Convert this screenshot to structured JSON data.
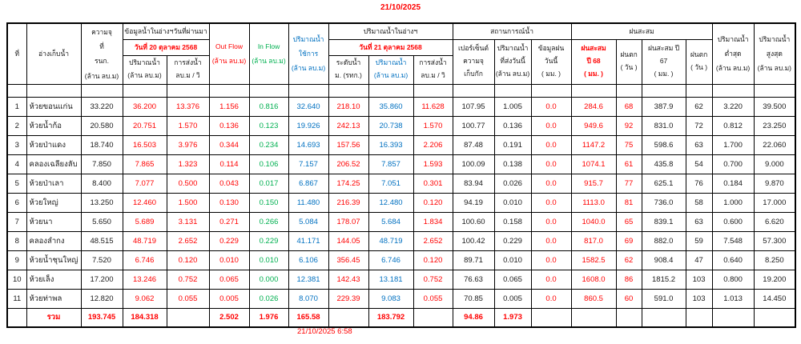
{
  "page": {
    "top_date": "21/10/2025",
    "footer_timestamp": "21/10/2025 6:58"
  },
  "colors": {
    "negative_red": "#ff0000",
    "inflow_green": "#00b050",
    "volume_blue": "#0070c0",
    "text_black": "#1a1a1a"
  },
  "table": {
    "header": {
      "no": "ที่",
      "reservoir": "อ่างเก็บน้ำ",
      "capacity": "ความจุ\nที่\nรนก.\n(ล้าน ลบ.ม)",
      "prev_group": "ข้อมูลน้ำในอ่างฯวันที่ผ่านมา",
      "prev_date": "วันที่ 20 ตุลาคม 2568",
      "prev_volume": "ปริมาณน้ำ\n(ล้าน ลบ.ม)",
      "prev_discharge": "การส่งน้ำ\nลบ.ม / วิ",
      "out_flow": "Out Flow\n(ล้าน ลบ.ม)",
      "in_flow": "In Flow\n(ล้าน ลบ.ม)",
      "usable": "ปริมาณน้ำ\nใช้การ\n(ล้าน ลบ.ม)",
      "today_group": "ปริมาณน้ำในอ่างฯ",
      "today_date": "วันที่ 21 ตุลาคม 2568",
      "level": "ระดับน้ำ\nม. (รทก.)",
      "today_volume": "ปริมาณน้ำ\n(ล้าน ลบ.ม)",
      "today_discharge": "การส่งน้ำ\nลบ.ม / วิ",
      "situation_group": "สถานการณ์น้ำ",
      "percent": "เปอร์เซ็นต์\nความจุ\nเก็บกัก",
      "sent_today": "ปริมาณน้ำ\nที่ส่งวันนี้\n(ล้าน ลบ.ม)",
      "rain_today": "ข้อมูลฝน\nวันนี้\n( มม. )",
      "rain_group": "ฝนสะสม",
      "rain68": "ฝนสะสม\nปี 68\n( มม. )",
      "rain_days68": "ฝนตก\n( วัน )",
      "rain67": "ฝนสะสม ปี\n67\n( มม. )",
      "rain_days67": "ฝนตก\n( วัน )",
      "min": "ปริมาณน้ำ\nต่ำสุด\n(ล้าน ลบ.ม)",
      "max": "ปริมาณน้ำ\nสูงสุด\n(ล้าน ลบ.ม)"
    },
    "column_keys": [
      "no",
      "reservoir",
      "capacity",
      "prev_volume",
      "prev_discharge",
      "out_flow",
      "in_flow",
      "usable",
      "level",
      "today_volume",
      "today_discharge",
      "percent",
      "sent_today",
      "rain_today",
      "rain_acc_68",
      "rain_days_68",
      "rain_acc_67",
      "rain_days_67",
      "min",
      "max"
    ],
    "column_colors": [
      "black",
      "black",
      "black",
      "red",
      "red",
      "red",
      "green",
      "blue",
      "red",
      "blue",
      "red",
      "black",
      "black",
      "red",
      "red",
      "red",
      "black",
      "black",
      "black",
      "black"
    ],
    "rows": [
      [
        "1",
        "ห้วยขอนแก่น",
        "33.220",
        "36.200",
        "13.376",
        "1.156",
        "0.816",
        "32.640",
        "218.10",
        "35.860",
        "11.628",
        "107.95",
        "1.005",
        "0.0",
        "284.6",
        "68",
        "387.9",
        "62",
        "3.220",
        "39.500"
      ],
      [
        "2",
        "ห้วยน้ำก้อ",
        "20.580",
        "20.751",
        "1.570",
        "0.136",
        "0.123",
        "19.926",
        "242.13",
        "20.738",
        "1.570",
        "100.77",
        "0.136",
        "0.0",
        "949.6",
        "92",
        "831.0",
        "72",
        "0.812",
        "23.250"
      ],
      [
        "3",
        "ห้วยป่าแดง",
        "18.740",
        "16.503",
        "3.976",
        "0.344",
        "0.234",
        "14.693",
        "157.56",
        "16.393",
        "2.206",
        "87.48",
        "0.191",
        "0.0",
        "1147.2",
        "75",
        "598.6",
        "63",
        "1.700",
        "22.060"
      ],
      [
        "4",
        "คลองเฉลียงลับ",
        "7.850",
        "7.865",
        "1.323",
        "0.114",
        "0.106",
        "7.157",
        "206.52",
        "7.857",
        "1.593",
        "100.09",
        "0.138",
        "0.0",
        "1074.1",
        "61",
        "435.8",
        "54",
        "0.700",
        "9.000"
      ],
      [
        "5",
        "ห้วยป่าเลา",
        "8.400",
        "7.077",
        "0.500",
        "0.043",
        "0.017",
        "6.867",
        "174.25",
        "7.051",
        "0.301",
        "83.94",
        "0.026",
        "0.0",
        "915.7",
        "77",
        "625.1",
        "76",
        "0.184",
        "9.870"
      ],
      [
        "6",
        "ห้วยใหญ่",
        "13.250",
        "12.460",
        "1.500",
        "0.130",
        "0.150",
        "11.480",
        "216.39",
        "12.480",
        "0.120",
        "94.19",
        "0.010",
        "0.0",
        "1113.0",
        "81",
        "736.0",
        "58",
        "1.000",
        "17.000"
      ],
      [
        "7",
        "ห้วยนา",
        "5.650",
        "5.689",
        "3.131",
        "0.271",
        "0.266",
        "5.084",
        "178.07",
        "5.684",
        "1.834",
        "100.60",
        "0.158",
        "0.0",
        "1040.0",
        "65",
        "839.1",
        "63",
        "0.600",
        "6.620"
      ],
      [
        "8",
        "คลองลำกง",
        "48.515",
        "48.719",
        "2.652",
        "0.229",
        "0.229",
        "41.171",
        "144.05",
        "48.719",
        "2.652",
        "100.42",
        "0.229",
        "0.0",
        "817.0",
        "69",
        "882.0",
        "59",
        "7.548",
        "57.300"
      ],
      [
        "9",
        "ห้วยน้ำชุนใหญ่",
        "7.520",
        "6.746",
        "0.120",
        "0.010",
        "0.010",
        "6.106",
        "356.45",
        "6.746",
        "0.120",
        "89.71",
        "0.010",
        "0.0",
        "1582.5",
        "62",
        "908.4",
        "47",
        "0.640",
        "8.250"
      ],
      [
        "10",
        "ห้วยเล็ง",
        "17.200",
        "13.246",
        "0.752",
        "0.065",
        "0.000",
        "12.381",
        "142.43",
        "13.181",
        "0.752",
        "76.63",
        "0.065",
        "0.0",
        "1608.0",
        "86",
        "1815.2",
        "103",
        "0.800",
        "19.200"
      ],
      [
        "11",
        "ห้วยท่าพล",
        "12.820",
        "9.062",
        "0.055",
        "0.005",
        "0.026",
        "8.070",
        "229.39",
        "9.083",
        "0.055",
        "70.85",
        "0.005",
        "0.0",
        "860.5",
        "60",
        "591.0",
        "103",
        "1.013",
        "14.450"
      ]
    ],
    "total_row": [
      "",
      "รวม",
      "193.745",
      "184.318",
      "",
      "2.502",
      "1.976",
      "165.58",
      "",
      "183.792",
      "",
      "94.86",
      "1.973",
      "",
      "",
      "",
      "",
      "",
      "",
      ""
    ]
  }
}
